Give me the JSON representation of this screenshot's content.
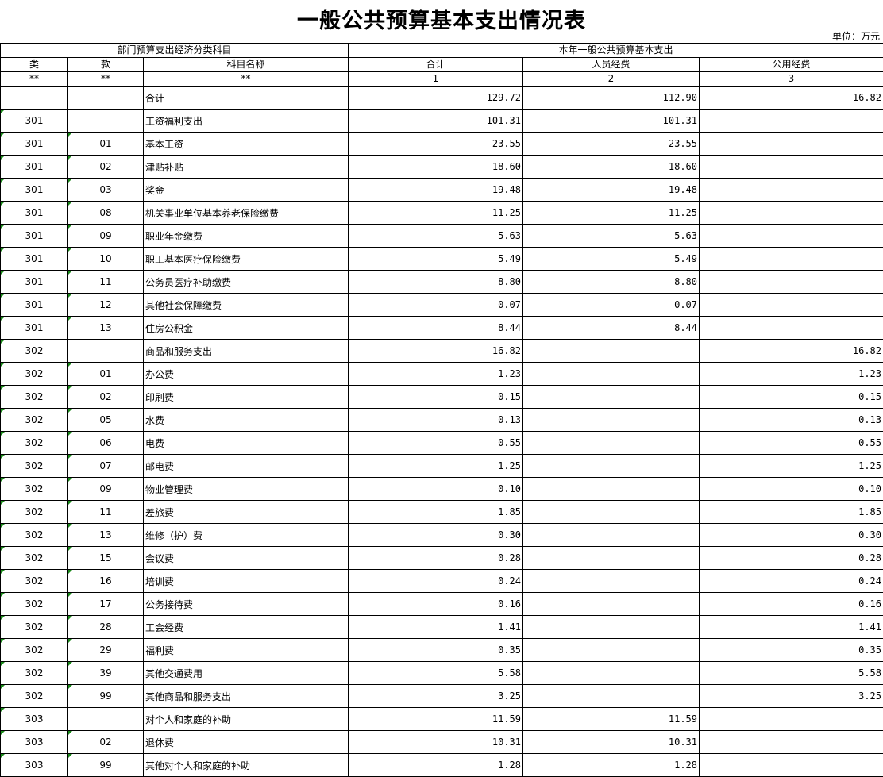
{
  "title": "一般公共预算基本支出情况表",
  "unit": "单位：万元",
  "header": {
    "group_left": "部门预算支出经济分类科目",
    "group_right": "本年一般公共预算基本支出",
    "col_class": "类",
    "col_item": "款",
    "col_name": "科目名称",
    "col_total": "合计",
    "col_personnel": "人员经费",
    "col_public": "公用经费",
    "code_class": "**",
    "code_item": "**",
    "code_name": "**",
    "code_total": "1",
    "code_personnel": "2",
    "code_public": "3"
  },
  "rows": [
    {
      "cls": "",
      "item": "",
      "name": "合计",
      "total": "129.72",
      "personnel": "112.90",
      "public": "16.82"
    },
    {
      "cls": "301",
      "item": "",
      "name": "工资福利支出",
      "total": "101.31",
      "personnel": "101.31",
      "public": ""
    },
    {
      "cls": "301",
      "item": "01",
      "name": "基本工资",
      "total": "23.55",
      "personnel": "23.55",
      "public": ""
    },
    {
      "cls": "301",
      "item": "02",
      "name": "津贴补贴",
      "total": "18.60",
      "personnel": "18.60",
      "public": ""
    },
    {
      "cls": "301",
      "item": "03",
      "name": "奖金",
      "total": "19.48",
      "personnel": "19.48",
      "public": ""
    },
    {
      "cls": "301",
      "item": "08",
      "name": "机关事业单位基本养老保险缴费",
      "total": "11.25",
      "personnel": "11.25",
      "public": ""
    },
    {
      "cls": "301",
      "item": "09",
      "name": "职业年金缴费",
      "total": "5.63",
      "personnel": "5.63",
      "public": ""
    },
    {
      "cls": "301",
      "item": "10",
      "name": "职工基本医疗保险缴费",
      "total": "5.49",
      "personnel": "5.49",
      "public": ""
    },
    {
      "cls": "301",
      "item": "11",
      "name": "公务员医疗补助缴费",
      "total": "8.80",
      "personnel": "8.80",
      "public": ""
    },
    {
      "cls": "301",
      "item": "12",
      "name": "其他社会保障缴费",
      "total": "0.07",
      "personnel": "0.07",
      "public": ""
    },
    {
      "cls": "301",
      "item": "13",
      "name": "住房公积金",
      "total": "8.44",
      "personnel": "8.44",
      "public": ""
    },
    {
      "cls": "302",
      "item": "",
      "name": "商品和服务支出",
      "total": "16.82",
      "personnel": "",
      "public": "16.82"
    },
    {
      "cls": "302",
      "item": "01",
      "name": "办公费",
      "total": "1.23",
      "personnel": "",
      "public": "1.23"
    },
    {
      "cls": "302",
      "item": "02",
      "name": "印刷费",
      "total": "0.15",
      "personnel": "",
      "public": "0.15"
    },
    {
      "cls": "302",
      "item": "05",
      "name": "水费",
      "total": "0.13",
      "personnel": "",
      "public": "0.13"
    },
    {
      "cls": "302",
      "item": "06",
      "name": "电费",
      "total": "0.55",
      "personnel": "",
      "public": "0.55"
    },
    {
      "cls": "302",
      "item": "07",
      "name": "邮电费",
      "total": "1.25",
      "personnel": "",
      "public": "1.25"
    },
    {
      "cls": "302",
      "item": "09",
      "name": "物业管理费",
      "total": "0.10",
      "personnel": "",
      "public": "0.10"
    },
    {
      "cls": "302",
      "item": "11",
      "name": "差旅费",
      "total": "1.85",
      "personnel": "",
      "public": "1.85"
    },
    {
      "cls": "302",
      "item": "13",
      "name": "维修（护）费",
      "total": "0.30",
      "personnel": "",
      "public": "0.30"
    },
    {
      "cls": "302",
      "item": "15",
      "name": "会议费",
      "total": "0.28",
      "personnel": "",
      "public": "0.28"
    },
    {
      "cls": "302",
      "item": "16",
      "name": "培训费",
      "total": "0.24",
      "personnel": "",
      "public": "0.24"
    },
    {
      "cls": "302",
      "item": "17",
      "name": "公务接待费",
      "total": "0.16",
      "personnel": "",
      "public": "0.16"
    },
    {
      "cls": "302",
      "item": "28",
      "name": "工会经费",
      "total": "1.41",
      "personnel": "",
      "public": "1.41"
    },
    {
      "cls": "302",
      "item": "29",
      "name": "福利费",
      "total": "0.35",
      "personnel": "",
      "public": "0.35"
    },
    {
      "cls": "302",
      "item": "39",
      "name": "其他交通费用",
      "total": "5.58",
      "personnel": "",
      "public": "5.58"
    },
    {
      "cls": "302",
      "item": "99",
      "name": "其他商品和服务支出",
      "total": "3.25",
      "personnel": "",
      "public": "3.25"
    },
    {
      "cls": "303",
      "item": "",
      "name": "对个人和家庭的补助",
      "total": "11.59",
      "personnel": "11.59",
      "public": ""
    },
    {
      "cls": "303",
      "item": "02",
      "name": "退休费",
      "total": "10.31",
      "personnel": "10.31",
      "public": ""
    },
    {
      "cls": "303",
      "item": "99",
      "name": "其他对个人和家庭的补助",
      "total": "1.28",
      "personnel": "1.28",
      "public": ""
    }
  ]
}
